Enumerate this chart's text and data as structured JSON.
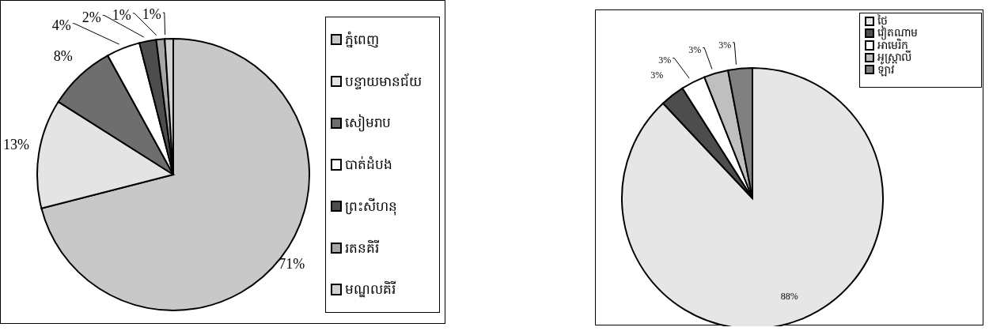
{
  "chart_data": [
    {
      "type": "pie",
      "categories": [
        "ភ្នំពេញ",
        "បន្ទាយមានជ័យ",
        "សៀមរាប",
        "បាត់ដំបង",
        "ព្រះសីហនុ",
        "រតនគិរី",
        "មណ្ឌលគិរី"
      ],
      "values": [
        71,
        13,
        8,
        4,
        2,
        1,
        1
      ],
      "colors": [
        "#c8c8c8",
        "#e4e4e4",
        "#6e6e6e",
        "#ffffff",
        "#4d4d4d",
        "#a6a6a6",
        "#d2d2d2"
      ],
      "value_labels": [
        "71%",
        "13%",
        "8%",
        "4%",
        "2%",
        "1%",
        "1%"
      ],
      "legend": "right"
    },
    {
      "type": "pie",
      "categories": [
        "ថៃ",
        "វៀតណាម",
        "អាមេរិក",
        "អូស្ត្រាលី",
        "ឡាវ"
      ],
      "values": [
        88,
        3,
        3,
        3,
        3
      ],
      "colors": [
        "#e6e6e6",
        "#4d4d4d",
        "#ffffff",
        "#bfbfbf",
        "#808080"
      ],
      "value_labels": [
        "88%",
        "3%",
        "3%",
        "3%",
        "3%"
      ],
      "legend": "top right"
    }
  ]
}
